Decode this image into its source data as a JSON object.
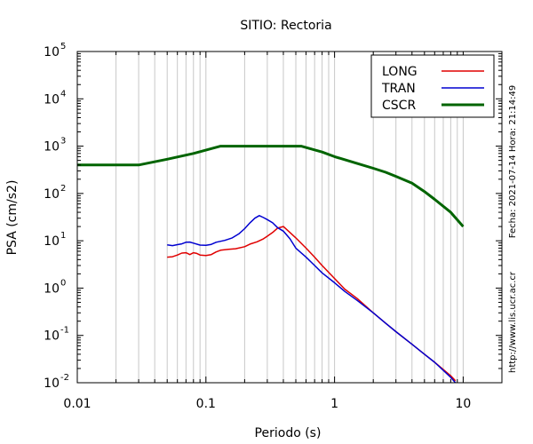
{
  "chart_data": {
    "type": "line",
    "title": "SITIO: Rectoria",
    "xlabel": "Periodo (s)",
    "ylabel": "PSA (cm/s2)",
    "x_scale": "log",
    "y_scale": "log",
    "xlim": [
      0.01,
      20
    ],
    "ylim": [
      0.01,
      100000
    ],
    "grid": "x-major-minor",
    "legend_position": "top-right",
    "x_ticks": [
      {
        "value": 0.01,
        "label": "0.01"
      },
      {
        "value": 0.1,
        "label": "0.1"
      },
      {
        "value": 1,
        "label": "1"
      },
      {
        "value": 10,
        "label": "10"
      }
    ],
    "y_ticks": [
      {
        "value": 0.01,
        "base": "10",
        "exp": "-2"
      },
      {
        "value": 0.1,
        "base": "10",
        "exp": "-1"
      },
      {
        "value": 1,
        "base": "10",
        "exp": "0"
      },
      {
        "value": 10,
        "base": "10",
        "exp": "1"
      },
      {
        "value": 100,
        "base": "10",
        "exp": "2"
      },
      {
        "value": 1000,
        "base": "10",
        "exp": "3"
      },
      {
        "value": 10000,
        "base": "10",
        "exp": "4"
      },
      {
        "value": 100000,
        "base": "10",
        "exp": "5"
      }
    ],
    "series": [
      {
        "name": "LONG",
        "color": "#e00000",
        "points": [
          [
            0.05,
            4.5
          ],
          [
            0.055,
            4.6
          ],
          [
            0.06,
            5.0
          ],
          [
            0.065,
            5.5
          ],
          [
            0.07,
            5.6
          ],
          [
            0.075,
            5.1
          ],
          [
            0.08,
            5.6
          ],
          [
            0.085,
            5.4
          ],
          [
            0.09,
            5.0
          ],
          [
            0.1,
            4.9
          ],
          [
            0.11,
            5.1
          ],
          [
            0.12,
            5.8
          ],
          [
            0.13,
            6.3
          ],
          [
            0.15,
            6.6
          ],
          [
            0.17,
            6.8
          ],
          [
            0.2,
            7.5
          ],
          [
            0.22,
            8.5
          ],
          [
            0.25,
            9.5
          ],
          [
            0.28,
            11
          ],
          [
            0.3,
            12.5
          ],
          [
            0.33,
            15
          ],
          [
            0.36,
            18.5
          ],
          [
            0.4,
            20
          ],
          [
            0.45,
            15
          ],
          [
            0.5,
            11.5
          ],
          [
            0.6,
            7
          ],
          [
            0.7,
            4.5
          ],
          [
            0.8,
            3
          ],
          [
            1.0,
            1.6
          ],
          [
            1.2,
            0.95
          ],
          [
            1.5,
            0.6
          ],
          [
            2,
            0.3
          ],
          [
            2.5,
            0.18
          ],
          [
            3,
            0.12
          ],
          [
            4,
            0.065
          ],
          [
            5,
            0.04
          ],
          [
            6,
            0.027
          ],
          [
            8,
            0.014
          ],
          [
            8.7,
            0.011
          ]
        ]
      },
      {
        "name": "TRAN",
        "color": "#0000d0",
        "points": [
          [
            0.05,
            8.2
          ],
          [
            0.055,
            7.9
          ],
          [
            0.06,
            8.3
          ],
          [
            0.065,
            8.6
          ],
          [
            0.07,
            9.3
          ],
          [
            0.075,
            9.4
          ],
          [
            0.08,
            8.9
          ],
          [
            0.09,
            8.1
          ],
          [
            0.1,
            8.0
          ],
          [
            0.11,
            8.4
          ],
          [
            0.12,
            9.3
          ],
          [
            0.14,
            10.2
          ],
          [
            0.16,
            11.5
          ],
          [
            0.18,
            14
          ],
          [
            0.2,
            18
          ],
          [
            0.22,
            24
          ],
          [
            0.24,
            30
          ],
          [
            0.26,
            34
          ],
          [
            0.28,
            31
          ],
          [
            0.3,
            28
          ],
          [
            0.33,
            24
          ],
          [
            0.36,
            19
          ],
          [
            0.4,
            16
          ],
          [
            0.45,
            11
          ],
          [
            0.5,
            7
          ],
          [
            0.6,
            4.5
          ],
          [
            0.7,
            3
          ],
          [
            0.8,
            2.1
          ],
          [
            1.0,
            1.3
          ],
          [
            1.2,
            0.85
          ],
          [
            1.5,
            0.55
          ],
          [
            2,
            0.3
          ],
          [
            2.5,
            0.18
          ],
          [
            3,
            0.12
          ],
          [
            4,
            0.065
          ],
          [
            5,
            0.04
          ],
          [
            6,
            0.027
          ],
          [
            8,
            0.013
          ],
          [
            8.7,
            0.01
          ]
        ]
      },
      {
        "name": "CSCR",
        "color": "#006400",
        "points": [
          [
            0.01,
            400
          ],
          [
            0.03,
            400
          ],
          [
            0.05,
            530
          ],
          [
            0.08,
            700
          ],
          [
            0.13,
            1000
          ],
          [
            0.55,
            1000
          ],
          [
            0.8,
            750
          ],
          [
            1.0,
            600
          ],
          [
            1.5,
            430
          ],
          [
            2,
            340
          ],
          [
            2.5,
            280
          ],
          [
            3,
            230
          ],
          [
            4,
            165
          ],
          [
            5,
            110
          ],
          [
            6,
            75
          ],
          [
            8,
            40
          ],
          [
            10,
            20
          ]
        ]
      }
    ]
  },
  "side_notes": {
    "timestamp": "Fecha: 2021-07-14 Hora: 21:14:49",
    "url": "http://www.lis.ucr.ac.cr"
  }
}
